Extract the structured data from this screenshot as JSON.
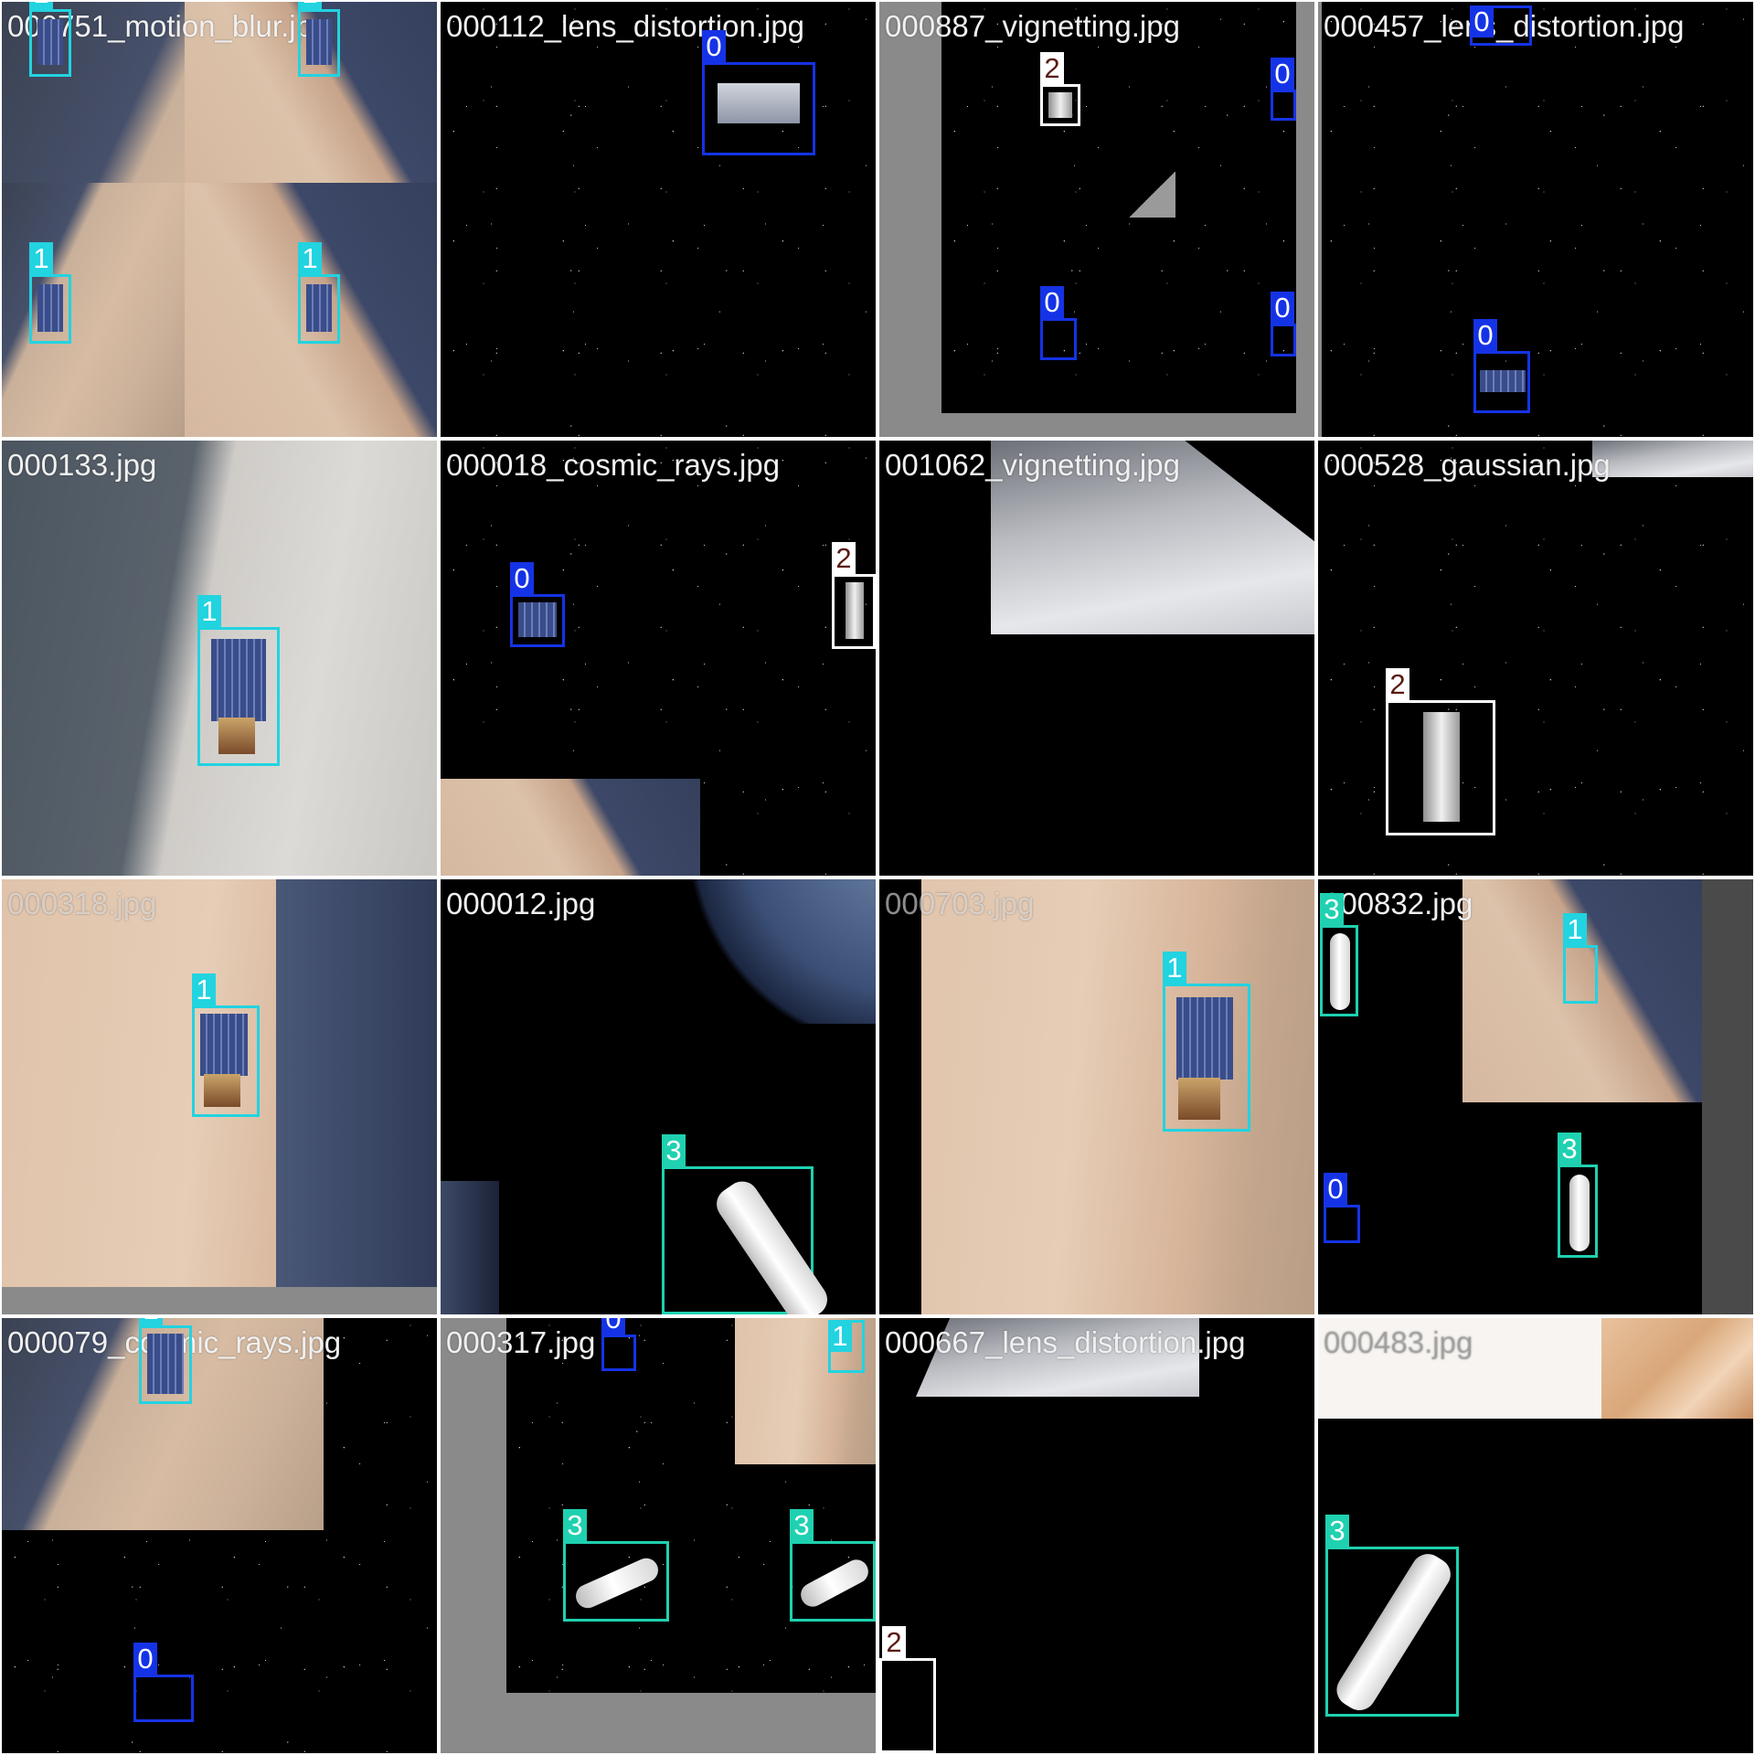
{
  "tiles": [
    {
      "label": "000751_motion_blur.jpg",
      "boxes": [
        {
          "cls": "1"
        },
        {
          "cls": "1"
        },
        {
          "cls": "1"
        },
        {
          "cls": "1"
        }
      ]
    },
    {
      "label": "000112_lens_distortion.jpg",
      "boxes": [
        {
          "cls": "0"
        }
      ]
    },
    {
      "label": "000887_vignetting.jpg",
      "boxes": [
        {
          "cls": "2"
        },
        {
          "cls": "0"
        },
        {
          "cls": "0"
        },
        {
          "cls": "0"
        }
      ]
    },
    {
      "label": "000457_lens_distortion.jpg",
      "boxes": [
        {
          "cls": "0"
        },
        {
          "cls": "0"
        }
      ]
    },
    {
      "label": "000133.jpg",
      "boxes": [
        {
          "cls": "1"
        }
      ]
    },
    {
      "label": "000018_cosmic_rays.jpg",
      "boxes": [
        {
          "cls": "0"
        },
        {
          "cls": "2"
        }
      ]
    },
    {
      "label": "001062_vignetting.jpg",
      "boxes": []
    },
    {
      "label": "000528_gaussian.jpg",
      "boxes": [
        {
          "cls": "2"
        }
      ]
    },
    {
      "label": "000318.jpg",
      "boxes": [
        {
          "cls": "1"
        }
      ]
    },
    {
      "label": "000012.jpg",
      "boxes": [
        {
          "cls": "3"
        }
      ]
    },
    {
      "label": "000703.jpg",
      "boxes": [
        {
          "cls": "1"
        }
      ]
    },
    {
      "label": "000832.jpg",
      "boxes": [
        {
          "cls": "3"
        },
        {
          "cls": "1"
        },
        {
          "cls": "0"
        },
        {
          "cls": "3"
        }
      ]
    },
    {
      "label": "000079_cosmic_rays.jpg",
      "boxes": [
        {
          "cls": "1"
        },
        {
          "cls": "0"
        }
      ]
    },
    {
      "label": "000317.jpg",
      "boxes": [
        {
          "cls": "0"
        },
        {
          "cls": "1"
        },
        {
          "cls": "3"
        },
        {
          "cls": "3"
        }
      ]
    },
    {
      "label": "000667_lens_distortion.jpg",
      "boxes": [
        {
          "cls": "2"
        }
      ]
    },
    {
      "label": "000483.jpg",
      "boxes": [
        {
          "cls": "3"
        }
      ]
    }
  ],
  "class_colors": {
    "0": "#1533e6",
    "1": "#22d3e0",
    "2": "#ffffff",
    "3": "#1fd1b0"
  }
}
